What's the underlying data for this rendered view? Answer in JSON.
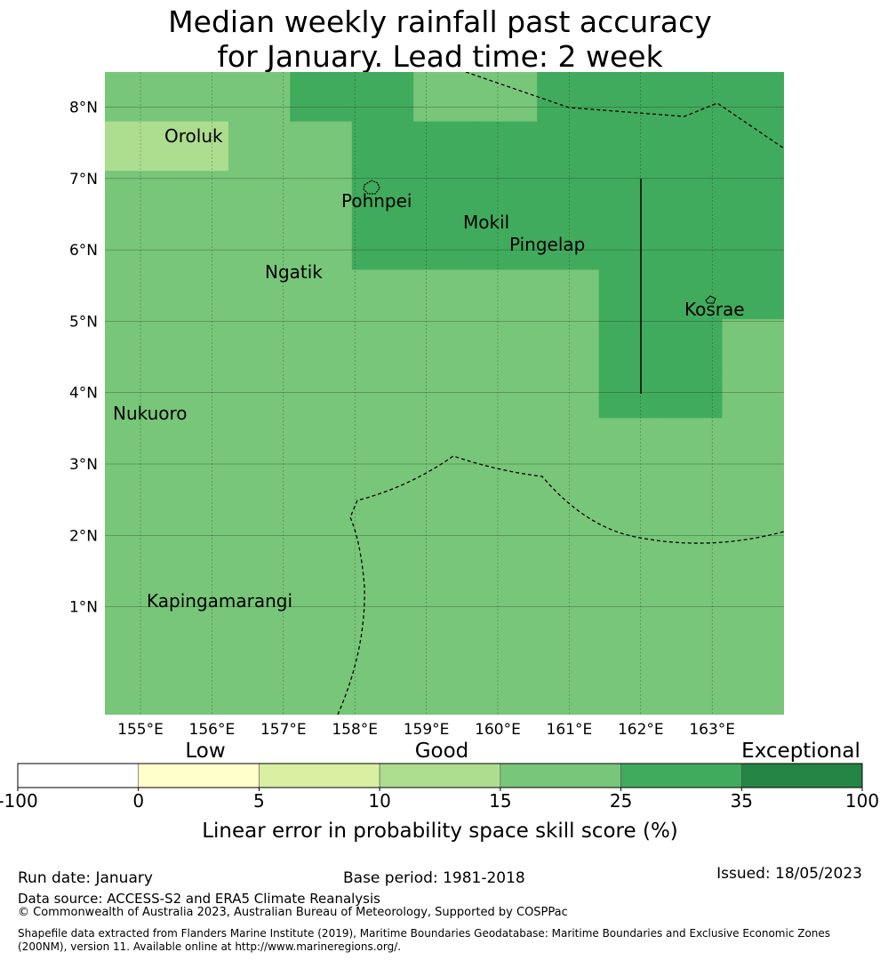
{
  "title": {
    "line1": "Median weekly rainfall past accuracy",
    "line2": "for January. Lead time: 2 week"
  },
  "map": {
    "longitude_ticks": [
      "155°E",
      "156°E",
      "157°E",
      "158°E",
      "159°E",
      "160°E",
      "161°E",
      "162°E",
      "163°E"
    ],
    "latitude_ticks": [
      "8°N",
      "7°N",
      "6°N",
      "5°N",
      "4°N",
      "3°N",
      "2°N",
      "1°N"
    ],
    "places": [
      {
        "name": "Oroluk"
      },
      {
        "name": "Pohnpei"
      },
      {
        "name": "Mokil"
      },
      {
        "name": "Pingelap"
      },
      {
        "name": "Ngatik"
      },
      {
        "name": "Kosrae"
      },
      {
        "name": "Nukuoro"
      },
      {
        "name": "Kapingamarangi"
      }
    ],
    "skill_grid": {
      "columns": 11,
      "rows": 13,
      "codes": [
        "44455445555",
        "33445555555",
        "44445555555",
        "44445555555",
        "44444444555",
        "44444444554",
        "44444444554",
        "44444444444",
        "44444444444",
        "44444444444",
        "44444444444",
        "44444444444",
        "44444444444"
      ]
    }
  },
  "legend": {
    "category_labels": [
      "Low",
      "Good",
      "Exceptional"
    ],
    "tick_labels": [
      "-100",
      "0",
      "5",
      "10",
      "15",
      "25",
      "35",
      "100"
    ],
    "colors": [
      "#ffffff",
      "#ffffcc",
      "#d9f0a3",
      "#addd8e",
      "#78c679",
      "#41ab5d",
      "#238443"
    ],
    "axis_label": "Linear error in probability space skill score (%)"
  },
  "footer": {
    "run_date": "Run date: January",
    "base_period": "Base period: 1981-2018",
    "issued": "Issued: 18/05/2023",
    "data_source": "Data source: ACCESS-S2 and ERA5 Climate Reanalysis",
    "copyright": "© Commonwealth of Australia 2023, Australian Bureau of Meteorology, Supported by COSPPac",
    "shapefile_line1": "Shapefile data extracted from Flanders Marine Institute (2019), Maritime Boundaries Geodatabase: Maritime Boundaries and Exclusive Economic Zones",
    "shapefile_line2": "(200NM), version 11. Available online at http://www.marineregions.org/."
  }
}
